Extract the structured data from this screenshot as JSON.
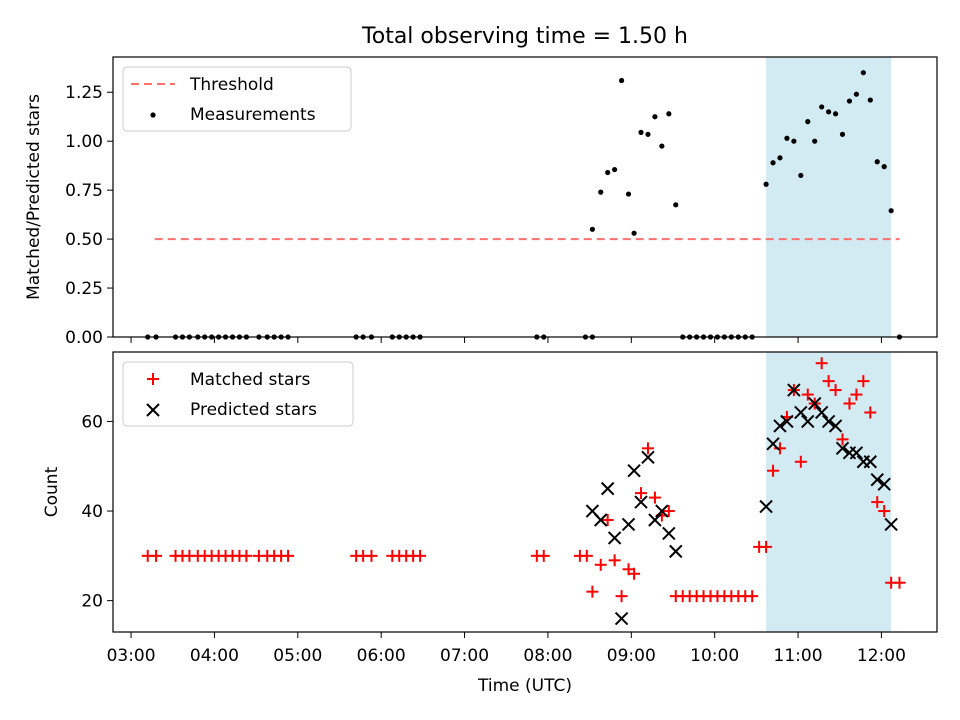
{
  "title": "Total observing time = 1.50 h",
  "shade_color": "#add8e6",
  "chart_data": [
    {
      "type": "scatter",
      "ylabel": "Matched/Predicted stars",
      "xlim": [
        "02:47",
        "12:40"
      ],
      "ylim": [
        0,
        1.43
      ],
      "yticks": [
        0,
        0.25,
        0.5,
        0.75,
        1.0,
        1.25
      ],
      "ytick_labels": [
        "0.00",
        "0.25",
        "0.50",
        "0.75",
        "1.00",
        "1.25"
      ],
      "shaded_span": [
        "10:37",
        "12:07"
      ],
      "threshold": {
        "name": "Threshold",
        "value": 0.5,
        "x_start": "03:17",
        "x_end": "12:13",
        "color": "#ff7070"
      },
      "series": [
        {
          "name": "Measurements",
          "color": "#000000",
          "points": [
            [
              "03:12",
              0
            ],
            [
              "03:18",
              0
            ],
            [
              "03:32",
              0
            ],
            [
              "03:37",
              0
            ],
            [
              "03:42",
              0
            ],
            [
              "03:48",
              0
            ],
            [
              "03:53",
              0
            ],
            [
              "03:58",
              0
            ],
            [
              "04:03",
              0
            ],
            [
              "04:08",
              0
            ],
            [
              "04:13",
              0
            ],
            [
              "04:18",
              0
            ],
            [
              "04:23",
              0
            ],
            [
              "04:32",
              0
            ],
            [
              "04:38",
              0
            ],
            [
              "04:43",
              0
            ],
            [
              "04:48",
              0
            ],
            [
              "04:53",
              0
            ],
            [
              "05:42",
              0
            ],
            [
              "05:47",
              0
            ],
            [
              "05:53",
              0
            ],
            [
              "06:08",
              0
            ],
            [
              "06:13",
              0
            ],
            [
              "06:18",
              0
            ],
            [
              "06:23",
              0
            ],
            [
              "06:28",
              0
            ],
            [
              "07:52",
              0
            ],
            [
              "07:57",
              0
            ],
            [
              "08:27",
              0
            ],
            [
              "08:32",
              0
            ],
            [
              "08:32",
              0.55
            ],
            [
              "08:38",
              0.74
            ],
            [
              "08:43",
              0.84
            ],
            [
              "08:48",
              0.855
            ],
            [
              "08:53",
              1.31
            ],
            [
              "08:58",
              0.73
            ],
            [
              "09:02",
              0.53
            ],
            [
              "09:07",
              1.045
            ],
            [
              "09:12",
              1.035
            ],
            [
              "09:17",
              1.125
            ],
            [
              "09:22",
              0.975
            ],
            [
              "09:27",
              1.14
            ],
            [
              "09:32",
              0.675
            ],
            [
              "09:37",
              0
            ],
            [
              "09:42",
              0
            ],
            [
              "09:47",
              0
            ],
            [
              "09:52",
              0
            ],
            [
              "09:57",
              0
            ],
            [
              "10:02",
              0
            ],
            [
              "10:07",
              0
            ],
            [
              "10:12",
              0
            ],
            [
              "10:17",
              0
            ],
            [
              "10:22",
              0
            ],
            [
              "10:27",
              0
            ],
            [
              "10:37",
              0.78
            ],
            [
              "10:42",
              0.89
            ],
            [
              "10:47",
              0.915
            ],
            [
              "10:52",
              1.015
            ],
            [
              "10:57",
              1.0
            ],
            [
              "11:02",
              0.825
            ],
            [
              "11:07",
              1.1
            ],
            [
              "11:12",
              1.0
            ],
            [
              "11:17",
              1.175
            ],
            [
              "11:22",
              1.15
            ],
            [
              "11:27",
              1.14
            ],
            [
              "11:32",
              1.035
            ],
            [
              "11:37",
              1.205
            ],
            [
              "11:42",
              1.24
            ],
            [
              "11:47",
              1.35
            ],
            [
              "11:52",
              1.21
            ],
            [
              "11:57",
              0.895
            ],
            [
              "12:02",
              0.87
            ],
            [
              "12:07",
              0.645
            ],
            [
              "12:13",
              0
            ]
          ]
        }
      ]
    },
    {
      "type": "scatter",
      "ylabel": "Count",
      "xlabel": "Time (UTC)",
      "xlim": [
        "02:47",
        "12:40"
      ],
      "ylim": [
        13,
        75.5
      ],
      "yticks": [
        20,
        40,
        60
      ],
      "ytick_labels": [
        "20",
        "40",
        "60"
      ],
      "xticks": [
        "03:00",
        "04:00",
        "05:00",
        "06:00",
        "07:00",
        "08:00",
        "09:00",
        "10:00",
        "11:00",
        "12:00"
      ],
      "shaded_span": [
        "10:37",
        "12:07"
      ],
      "series": [
        {
          "name": "Matched stars",
          "marker": "+",
          "color": "#ff0000",
          "points": [
            [
              "03:12",
              30
            ],
            [
              "03:18",
              30
            ],
            [
              "03:32",
              30
            ],
            [
              "03:37",
              30
            ],
            [
              "03:42",
              30
            ],
            [
              "03:48",
              30
            ],
            [
              "03:53",
              30
            ],
            [
              "03:58",
              30
            ],
            [
              "04:03",
              30
            ],
            [
              "04:08",
              30
            ],
            [
              "04:13",
              30
            ],
            [
              "04:18",
              30
            ],
            [
              "04:23",
              30
            ],
            [
              "04:32",
              30
            ],
            [
              "04:38",
              30
            ],
            [
              "04:43",
              30
            ],
            [
              "04:48",
              30
            ],
            [
              "04:53",
              30
            ],
            [
              "05:42",
              30
            ],
            [
              "05:47",
              30
            ],
            [
              "05:53",
              30
            ],
            [
              "06:08",
              30
            ],
            [
              "06:13",
              30
            ],
            [
              "06:18",
              30
            ],
            [
              "06:23",
              30
            ],
            [
              "06:28",
              30
            ],
            [
              "07:52",
              30
            ],
            [
              "07:57",
              30
            ],
            [
              "08:23",
              30
            ],
            [
              "08:28",
              30
            ],
            [
              "08:32",
              22
            ],
            [
              "08:38",
              28
            ],
            [
              "08:43",
              38
            ],
            [
              "08:48",
              29
            ],
            [
              "08:53",
              21
            ],
            [
              "08:58",
              27
            ],
            [
              "09:02",
              26
            ],
            [
              "09:07",
              44
            ],
            [
              "09:12",
              54
            ],
            [
              "09:17",
              43
            ],
            [
              "09:22",
              39
            ],
            [
              "09:27",
              40
            ],
            [
              "09:32",
              21
            ],
            [
              "09:37",
              21
            ],
            [
              "09:42",
              21
            ],
            [
              "09:47",
              21
            ],
            [
              "09:52",
              21
            ],
            [
              "09:57",
              21
            ],
            [
              "10:02",
              21
            ],
            [
              "10:07",
              21
            ],
            [
              "10:12",
              21
            ],
            [
              "10:17",
              21
            ],
            [
              "10:22",
              21
            ],
            [
              "10:27",
              21
            ],
            [
              "10:32",
              32
            ],
            [
              "10:37",
              32
            ],
            [
              "10:42",
              49
            ],
            [
              "10:47",
              54
            ],
            [
              "10:52",
              61
            ],
            [
              "10:57",
              67
            ],
            [
              "11:02",
              51
            ],
            [
              "11:07",
              66
            ],
            [
              "11:12",
              64
            ],
            [
              "11:17",
              73
            ],
            [
              "11:22",
              69
            ],
            [
              "11:27",
              67
            ],
            [
              "11:32",
              56
            ],
            [
              "11:37",
              64
            ],
            [
              "11:42",
              66
            ],
            [
              "11:47",
              69
            ],
            [
              "11:52",
              62
            ],
            [
              "11:57",
              42
            ],
            [
              "12:02",
              40
            ],
            [
              "12:07",
              24
            ],
            [
              "12:13",
              24
            ]
          ]
        },
        {
          "name": "Predicted stars",
          "marker": "x",
          "color": "#000000",
          "points": [
            [
              "08:32",
              40
            ],
            [
              "08:38",
              38
            ],
            [
              "08:43",
              45
            ],
            [
              "08:48",
              34
            ],
            [
              "08:53",
              16
            ],
            [
              "08:58",
              37
            ],
            [
              "09:02",
              49
            ],
            [
              "09:07",
              42
            ],
            [
              "09:12",
              52
            ],
            [
              "09:17",
              38
            ],
            [
              "09:22",
              40
            ],
            [
              "09:27",
              35
            ],
            [
              "09:32",
              31
            ],
            [
              "10:37",
              41
            ],
            [
              "10:42",
              55
            ],
            [
              "10:47",
              59
            ],
            [
              "10:52",
              60
            ],
            [
              "10:57",
              67
            ],
            [
              "11:02",
              62
            ],
            [
              "11:07",
              60
            ],
            [
              "11:12",
              64
            ],
            [
              "11:17",
              62
            ],
            [
              "11:22",
              60
            ],
            [
              "11:27",
              59
            ],
            [
              "11:32",
              54
            ],
            [
              "11:37",
              53
            ],
            [
              "11:42",
              53
            ],
            [
              "11:47",
              51
            ],
            [
              "11:52",
              51
            ],
            [
              "11:57",
              47
            ],
            [
              "12:02",
              46
            ],
            [
              "12:07",
              37
            ]
          ]
        }
      ]
    }
  ]
}
